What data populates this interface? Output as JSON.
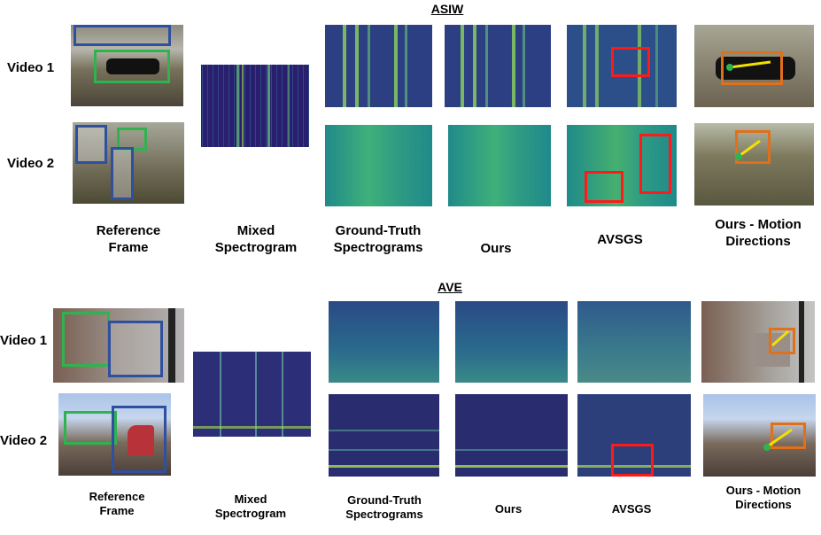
{
  "sections": [
    {
      "title": "ASIW",
      "rows": [
        "Video 1",
        "Video 2"
      ],
      "columns": [
        "Reference Frame",
        "Mixed Spectrogram",
        "Ground-Truth Spectrograms",
        "Ours",
        "AVSGS",
        "Ours - Motion Directions"
      ]
    },
    {
      "title": "AVE",
      "rows": [
        "Video 1",
        "Video 2"
      ],
      "columns": [
        "Reference Frame",
        "Mixed Spectrogram",
        "Ground-Truth Spectrograms",
        "Ours",
        "AVSGS",
        "Ours - Motion Directions"
      ]
    }
  ],
  "colors": {
    "spectrogram_dark": "#2a1f6e",
    "spectrogram_mid": "#1f8a8a",
    "spectrogram_bright": "#a8e04a",
    "highlight_box": "#ff1a1a",
    "bbox_green": "#2fb34f",
    "bbox_blue": "#2f4f9f",
    "motion_box": "#e0701a",
    "motion_arrow": "#f4e000"
  }
}
